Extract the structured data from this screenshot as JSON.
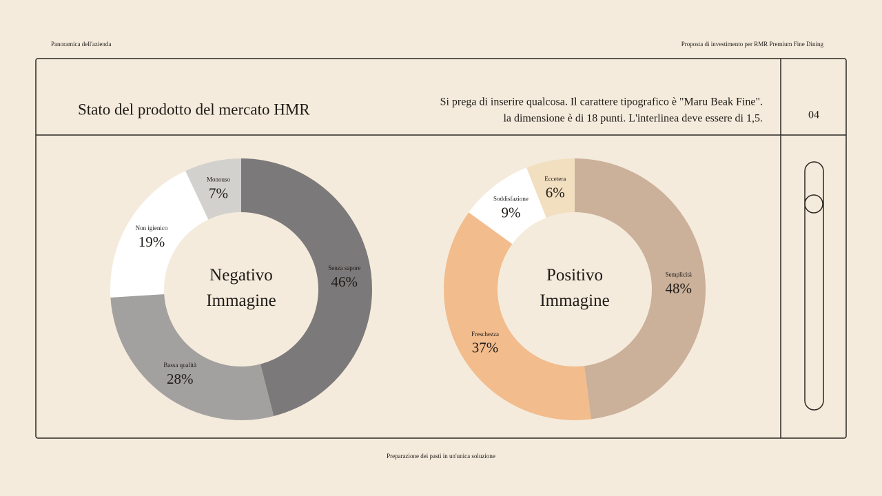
{
  "header_left": "Panoramica dell'azienda",
  "header_right": "Proposta di investimento per RMR Premium Fine Dining",
  "title": "Stato del prodotto del mercato HMR",
  "description": [
    "Si prega di inserire qualcosa. Il carattere tipografico è \"Maru Beak Fine\".",
    "la dimensione è di 18 punti. L'interlinea deve essere di 1,5."
  ],
  "page_number": "04",
  "footer": "Preparazione dei pasti in un'unica soluzione",
  "chart_data": [
    {
      "type": "pie",
      "donut": true,
      "center_label": [
        "Negativo",
        "Immagine"
      ],
      "categories": [
        "Senza sapore",
        "Bassa qualità",
        "Non igienico",
        "Monouso"
      ],
      "values": [
        46,
        28,
        19,
        7
      ],
      "value_labels": [
        "46%",
        "28%",
        "19%",
        "7%"
      ],
      "colors": [
        "#7b7979",
        "#a3a1a0",
        "#ffffff",
        "#d3d1ce"
      ]
    },
    {
      "type": "pie",
      "donut": true,
      "center_label": [
        "Positivo",
        "Immagine"
      ],
      "categories": [
        "Semplicità",
        "Freschezza",
        "Soddisfazione",
        "Eccetera"
      ],
      "values": [
        48,
        37,
        9,
        6
      ],
      "value_labels": [
        "48%",
        "37%",
        "9%",
        "6%"
      ],
      "colors": [
        "#cbb09a",
        "#f2bc8d",
        "#ffffff",
        "#f2dfc0"
      ]
    }
  ]
}
